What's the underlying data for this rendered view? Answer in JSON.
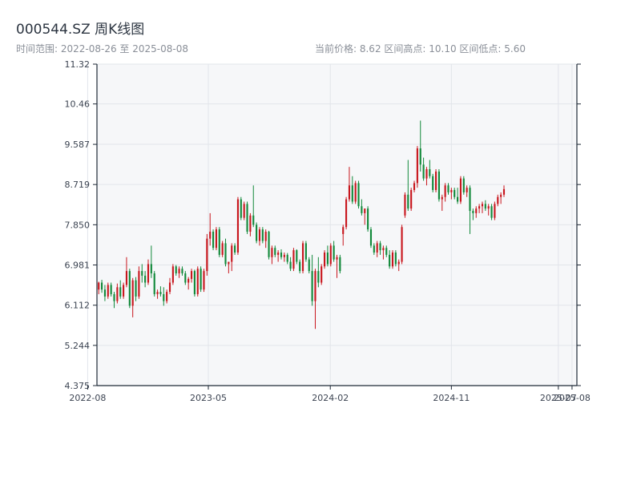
{
  "header": {
    "title": "000544.SZ 周K线图",
    "range_text": "时间范围: 2022-08-26 至 2025-08-08",
    "stats_text": "当前价格: 8.62   区间高点: 10.10   区间低点: 5.60"
  },
  "colors": {
    "up": "#c8161d",
    "down": "#11893a",
    "plot_bg": "#f6f7f9",
    "grid": "#e2e5ea",
    "axis": "#1f2a37"
  },
  "chart_data": {
    "type": "candlestick",
    "title": "000544.SZ 周K线图",
    "x_range": [
      "2022-08-26",
      "2025-08-08"
    ],
    "ylim": [
      4.375,
      11.32
    ],
    "y_ticks": [
      4.375,
      5.244,
      6.112,
      6.981,
      7.85,
      8.719,
      9.587,
      10.46,
      11.32
    ],
    "y_tick_labels": [
      "4.375",
      "5.244",
      "6.112",
      "6.981",
      "7.850",
      "8.719",
      "9.587",
      "10.46",
      "11.32"
    ],
    "x_ticks": [
      "2022-08",
      "2023-05",
      "2024-02",
      "2024-11",
      "2025-07",
      "2025-08"
    ],
    "x_tick_labels": [
      "2022-08",
      "2023-05",
      "2024-02",
      "2024-11",
      "2025-07",
      "2025-08"
    ],
    "grid": true,
    "candles_ohlc": [
      [
        6.45,
        6.62,
        6.35,
        6.6
      ],
      [
        6.6,
        6.66,
        6.38,
        6.45
      ],
      [
        6.45,
        6.55,
        6.2,
        6.3
      ],
      [
        6.3,
        6.6,
        6.25,
        6.55
      ],
      [
        6.55,
        6.6,
        6.3,
        6.35
      ],
      [
        6.35,
        6.4,
        6.05,
        6.2
      ],
      [
        6.2,
        6.58,
        6.15,
        6.5
      ],
      [
        6.5,
        6.65,
        6.25,
        6.3
      ],
      [
        6.3,
        6.6,
        6.25,
        6.55
      ],
      [
        6.55,
        7.15,
        6.5,
        6.85
      ],
      [
        6.85,
        6.9,
        6.05,
        6.1
      ],
      [
        6.1,
        6.7,
        5.85,
        6.65
      ],
      [
        6.65,
        6.72,
        6.2,
        6.3
      ],
      [
        6.3,
        6.95,
        6.25,
        6.85
      ],
      [
        6.85,
        7.0,
        6.6,
        6.75
      ],
      [
        6.75,
        6.85,
        6.5,
        6.6
      ],
      [
        6.6,
        7.1,
        6.55,
        7.0
      ],
      [
        7.0,
        7.4,
        6.7,
        6.8
      ],
      [
        6.8,
        6.85,
        6.3,
        6.35
      ],
      [
        6.35,
        6.45,
        6.25,
        6.4
      ],
      [
        6.4,
        6.52,
        6.3,
        6.35
      ],
      [
        6.35,
        6.5,
        6.1,
        6.2
      ],
      [
        6.2,
        6.45,
        6.15,
        6.4
      ],
      [
        6.4,
        6.7,
        6.35,
        6.6
      ],
      [
        6.6,
        7.0,
        6.55,
        6.95
      ],
      [
        6.95,
        6.98,
        6.75,
        6.8
      ],
      [
        6.8,
        6.95,
        6.7,
        6.9
      ],
      [
        6.9,
        6.95,
        6.75,
        6.8
      ],
      [
        6.8,
        6.85,
        6.55,
        6.6
      ],
      [
        6.6,
        6.72,
        6.45,
        6.68
      ],
      [
        6.68,
        6.9,
        6.6,
        6.85
      ],
      [
        6.85,
        6.88,
        6.3,
        6.35
      ],
      [
        6.35,
        6.95,
        6.3,
        6.9
      ],
      [
        6.9,
        6.95,
        6.4,
        6.45
      ],
      [
        6.45,
        6.9,
        6.4,
        6.85
      ],
      [
        6.85,
        7.65,
        6.75,
        7.55
      ],
      [
        7.55,
        8.1,
        7.4,
        7.7
      ],
      [
        7.7,
        7.75,
        7.3,
        7.35
      ],
      [
        7.35,
        7.8,
        7.3,
        7.75
      ],
      [
        7.75,
        7.8,
        7.15,
        7.2
      ],
      [
        7.2,
        7.5,
        7.15,
        7.45
      ],
      [
        7.45,
        7.55,
        6.95,
        7.0
      ],
      [
        7.0,
        7.05,
        6.8,
        7.05
      ],
      [
        7.05,
        7.45,
        6.85,
        7.4
      ],
      [
        7.4,
        7.45,
        7.2,
        7.25
      ],
      [
        7.25,
        8.45,
        7.2,
        8.4
      ],
      [
        8.4,
        8.45,
        7.95,
        8.0
      ],
      [
        8.0,
        8.35,
        7.95,
        8.3
      ],
      [
        8.3,
        8.35,
        7.65,
        7.7
      ],
      [
        7.7,
        8.1,
        7.6,
        8.05
      ],
      [
        8.05,
        8.7,
        7.8,
        7.85
      ],
      [
        7.85,
        7.9,
        7.45,
        7.5
      ],
      [
        7.5,
        7.8,
        7.4,
        7.75
      ],
      [
        7.75,
        7.8,
        7.45,
        7.5
      ],
      [
        7.5,
        7.75,
        7.35,
        7.7
      ],
      [
        7.7,
        7.72,
        7.1,
        7.15
      ],
      [
        7.15,
        7.4,
        7.0,
        7.35
      ],
      [
        7.35,
        7.4,
        7.15,
        7.2
      ],
      [
        7.2,
        7.3,
        7.05,
        7.25
      ],
      [
        7.25,
        7.32,
        7.1,
        7.15
      ],
      [
        7.15,
        7.25,
        7.05,
        7.2
      ],
      [
        7.2,
        7.24,
        7.0,
        7.05
      ],
      [
        7.05,
        7.15,
        6.85,
        6.9
      ],
      [
        6.9,
        7.35,
        6.85,
        7.3
      ],
      [
        7.3,
        7.32,
        7.0,
        7.05
      ],
      [
        7.05,
        7.1,
        6.8,
        6.85
      ],
      [
        6.85,
        7.5,
        6.8,
        7.45
      ],
      [
        7.45,
        7.5,
        7.05,
        7.1
      ],
      [
        7.1,
        7.15,
        6.8,
        6.85
      ],
      [
        6.85,
        7.2,
        6.1,
        6.2
      ],
      [
        6.2,
        6.9,
        5.6,
        6.85
      ],
      [
        6.85,
        7.15,
        6.5,
        6.6
      ],
      [
        6.6,
        7.0,
        6.55,
        6.95
      ],
      [
        6.95,
        7.3,
        6.9,
        7.25
      ],
      [
        7.25,
        7.4,
        6.95,
        7.0
      ],
      [
        7.0,
        7.45,
        6.95,
        7.4
      ],
      [
        7.4,
        7.5,
        7.05,
        7.1
      ],
      [
        7.1,
        7.2,
        6.7,
        7.15
      ],
      [
        7.15,
        7.2,
        6.8,
        6.85
      ],
      [
        7.65,
        7.85,
        7.4,
        7.8
      ],
      [
        7.8,
        8.45,
        7.75,
        8.4
      ],
      [
        8.4,
        9.1,
        8.35,
        8.7
      ],
      [
        8.7,
        8.9,
        8.3,
        8.35
      ],
      [
        8.35,
        8.8,
        8.3,
        8.75
      ],
      [
        8.75,
        8.8,
        8.2,
        8.25
      ],
      [
        8.25,
        8.4,
        8.05,
        8.1
      ],
      [
        8.1,
        8.2,
        7.85,
        8.2
      ],
      [
        8.2,
        8.25,
        7.7,
        7.75
      ],
      [
        7.75,
        7.8,
        7.35,
        7.4
      ],
      [
        7.4,
        7.45,
        7.2,
        7.25
      ],
      [
        7.25,
        7.5,
        7.15,
        7.45
      ],
      [
        7.45,
        7.5,
        7.2,
        7.3
      ],
      [
        7.3,
        7.4,
        7.1,
        7.35
      ],
      [
        7.35,
        7.4,
        7.15,
        7.2
      ],
      [
        7.2,
        7.3,
        6.9,
        6.95
      ],
      [
        6.95,
        7.3,
        6.9,
        7.25
      ],
      [
        7.25,
        7.3,
        6.95,
        7.0
      ],
      [
        7.0,
        7.1,
        6.85,
        7.05
      ],
      [
        7.05,
        7.85,
        7.0,
        7.8
      ],
      [
        8.05,
        8.55,
        8.0,
        8.5
      ],
      [
        8.5,
        9.25,
        8.15,
        8.2
      ],
      [
        8.2,
        8.65,
        8.15,
        8.6
      ],
      [
        8.6,
        8.8,
        8.55,
        8.75
      ],
      [
        8.75,
        9.55,
        8.65,
        9.5
      ],
      [
        9.5,
        10.1,
        9.0,
        9.15
      ],
      [
        9.15,
        9.3,
        8.8,
        8.85
      ],
      [
        8.85,
        9.1,
        8.7,
        9.05
      ],
      [
        9.05,
        9.25,
        8.85,
        8.9
      ],
      [
        8.9,
        8.95,
        8.55,
        8.6
      ],
      [
        8.6,
        9.05,
        8.55,
        9.0
      ],
      [
        9.0,
        9.05,
        8.35,
        8.4
      ],
      [
        8.4,
        8.5,
        8.15,
        8.45
      ],
      [
        8.45,
        8.75,
        8.35,
        8.7
      ],
      [
        8.7,
        8.75,
        8.5,
        8.55
      ],
      [
        8.55,
        8.65,
        8.4,
        8.6
      ],
      [
        8.6,
        8.65,
        8.4,
        8.45
      ],
      [
        8.45,
        8.65,
        8.3,
        8.35
      ],
      [
        8.35,
        8.9,
        8.3,
        8.85
      ],
      [
        8.85,
        8.9,
        8.5,
        8.55
      ],
      [
        8.55,
        8.7,
        8.45,
        8.65
      ],
      [
        8.65,
        8.7,
        7.65,
        8.15
      ],
      [
        8.15,
        8.2,
        7.95,
        8.1
      ],
      [
        8.1,
        8.25,
        8.0,
        8.2
      ],
      [
        8.2,
        8.3,
        8.1,
        8.25
      ],
      [
        8.25,
        8.35,
        8.1,
        8.3
      ],
      [
        8.3,
        8.38,
        8.15,
        8.2
      ],
      [
        8.2,
        8.3,
        8.05,
        8.25
      ],
      [
        8.25,
        8.3,
        7.95,
        8.0
      ],
      [
        8.0,
        8.35,
        7.95,
        8.3
      ],
      [
        8.3,
        8.5,
        8.25,
        8.45
      ],
      [
        8.45,
        8.55,
        8.3,
        8.5
      ],
      [
        8.5,
        8.7,
        8.45,
        8.62
      ]
    ]
  }
}
